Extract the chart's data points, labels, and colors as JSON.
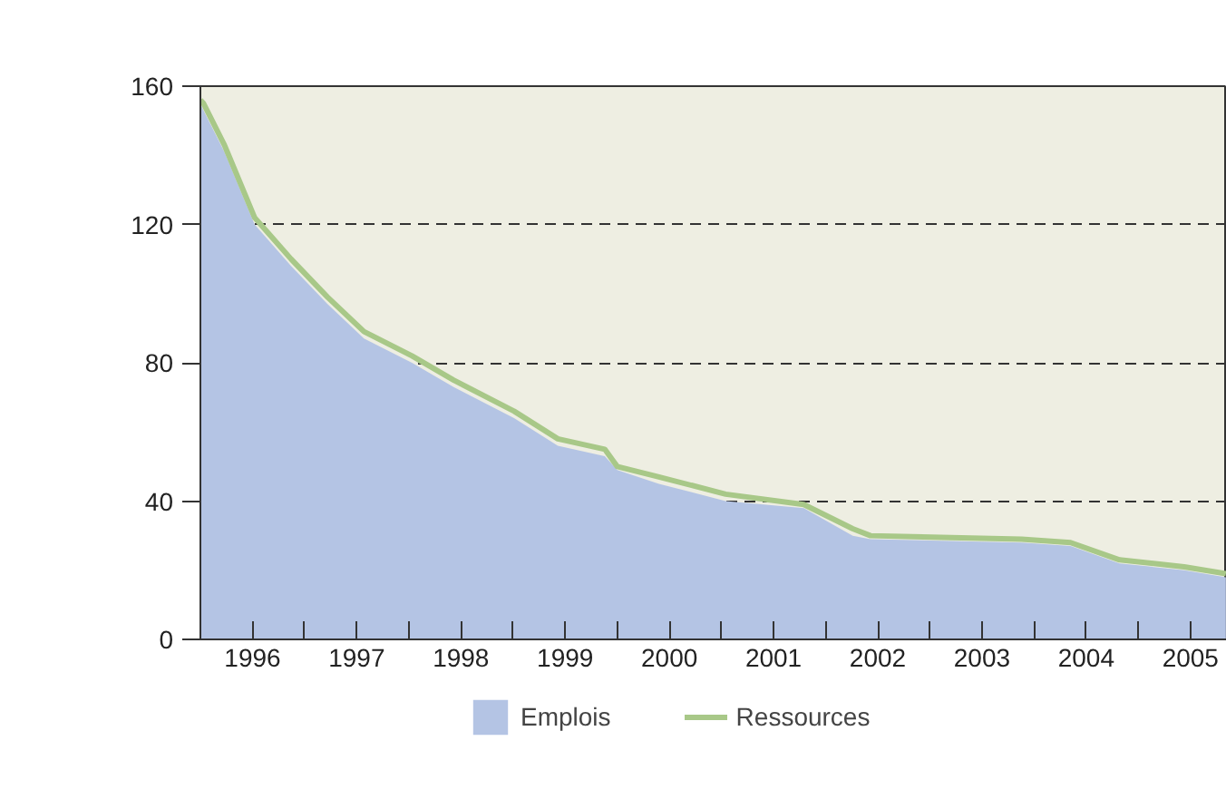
{
  "chart_data": {
    "type": "area",
    "xlim": [
      1996,
      2005.85
    ],
    "ylim": [
      0,
      160
    ],
    "yticks": [
      0,
      40,
      80,
      120,
      160
    ],
    "xticks": [
      {
        "value": 1996,
        "label": null
      },
      {
        "value": 1996.5,
        "label": "1996"
      },
      {
        "value": 1997,
        "label": null
      },
      {
        "value": 1997.5,
        "label": "1997"
      },
      {
        "value": 1998,
        "label": null
      },
      {
        "value": 1998.5,
        "label": "1998"
      },
      {
        "value": 1999,
        "label": null
      },
      {
        "value": 1999.5,
        "label": "1999"
      },
      {
        "value": 2000,
        "label": null
      },
      {
        "value": 2000.5,
        "label": "2000"
      },
      {
        "value": 2001,
        "label": null
      },
      {
        "value": 2001.5,
        "label": "2001"
      },
      {
        "value": 2002,
        "label": null
      },
      {
        "value": 2002.5,
        "label": "2002"
      },
      {
        "value": 2003,
        "label": null
      },
      {
        "value": 2003.5,
        "label": "2003"
      },
      {
        "value": 2004,
        "label": null
      },
      {
        "value": 2004.5,
        "label": "2004"
      },
      {
        "value": 2005,
        "label": null
      },
      {
        "value": 2005.5,
        "label": "2005"
      }
    ],
    "x": [
      1996.0,
      1996.03,
      1996.23,
      1996.52,
      1996.87,
      1997.22,
      1997.57,
      1998.03,
      1998.43,
      1999.01,
      1999.43,
      1999.88,
      2000.0,
      2000.4,
      2001.04,
      2001.79,
      2002.26,
      2002.43,
      2003.88,
      2004.35,
      2004.82,
      2005.44,
      2005.84
    ],
    "series": [
      {
        "name": "Emplois",
        "color": "#b4c4e4",
        "values": [
          155,
          153,
          141,
          120,
          108,
          97,
          87,
          80,
          73,
          64,
          56,
          53,
          49,
          45,
          40,
          38,
          30,
          29,
          28,
          27,
          22,
          20,
          18
        ]
      },
      {
        "name": "Ressources",
        "type": "line",
        "color": "#a8c888",
        "values": [
          156,
          155,
          143,
          122,
          110,
          99,
          89,
          82,
          75,
          66,
          58,
          55,
          50,
          47,
          42,
          39,
          32,
          30,
          29,
          28,
          23,
          21,
          19
        ]
      }
    ],
    "grid": "y",
    "legend": "bottom"
  }
}
